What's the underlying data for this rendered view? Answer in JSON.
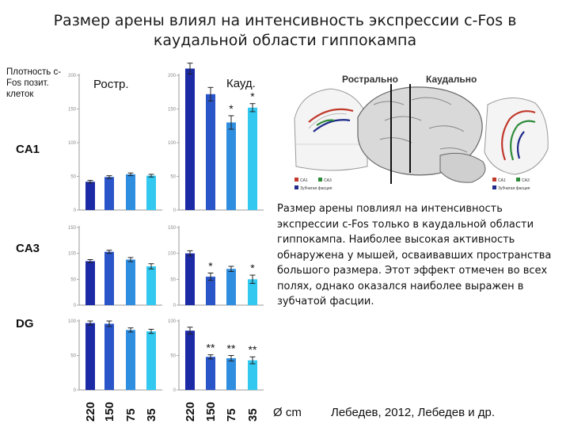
{
  "title": "Размер арены влиял на интенсивность экспрессии c-Fos в каудальной области гиппокампа",
  "y_axis_label": "Плотность c-Fos позит. клеток",
  "panel_labels": {
    "rostral": "Ростр.",
    "caudal": "Кауд."
  },
  "unit_label": "Ø cm",
  "citation": "Лебедев, 2012, Лебедев и др.",
  "description": "Размер арены повлиял на интенсивность экспрессии c-Fos только в каудальной области гиппокампа. Наиболее высокая активность обнаружена у мышей, осваивавших пространства большого размера. Этот эффект отмечен во всех полях, однако оказался наиболее выражен в зубчатой фасции.",
  "brain_figure": {
    "rostral_label": "Рострально",
    "caudal_label": "Каудально",
    "legend": [
      {
        "label": "CA1",
        "color": "#c0392b"
      },
      {
        "label": "CA3",
        "color": "#2e8b3a"
      },
      {
        "label": "Зубчатая фасция",
        "color": "#1f2a8a"
      }
    ]
  },
  "chart_data": {
    "type": "bar",
    "categories": [
      "220",
      "150",
      "75",
      "35"
    ],
    "bar_colors": [
      "#1c2aa6",
      "#2a55c9",
      "#2f8ee0",
      "#33c8f0"
    ],
    "panels": [
      {
        "region": "CA1",
        "ylim": [
          0,
          200
        ],
        "yticks": [
          0,
          50,
          100,
          150,
          200
        ],
        "rostral": {
          "values": [
            42,
            49,
            53,
            51
          ],
          "errors": [
            2,
            2,
            2,
            2
          ],
          "marks": [
            "",
            "",
            "",
            ""
          ]
        },
        "caudal": {
          "values": [
            210,
            172,
            130,
            152
          ],
          "errors": [
            8,
            10,
            10,
            6
          ],
          "marks": [
            "",
            "",
            "*",
            "*"
          ]
        }
      },
      {
        "region": "CA3",
        "ylim": [
          0,
          150
        ],
        "yticks": [
          0,
          50,
          100,
          150
        ],
        "rostral": {
          "values": [
            85,
            103,
            88,
            75
          ],
          "errors": [
            3,
            3,
            4,
            5
          ],
          "marks": [
            "",
            "",
            "",
            ""
          ]
        },
        "caudal": {
          "values": [
            100,
            55,
            70,
            50
          ],
          "errors": [
            5,
            7,
            5,
            8
          ],
          "marks": [
            "",
            "*",
            "",
            "*"
          ]
        }
      },
      {
        "region": "DG",
        "ylim": [
          0,
          100
        ],
        "yticks": [
          0,
          50,
          100
        ],
        "rostral": {
          "values": [
            97,
            96,
            87,
            85
          ],
          "errors": [
            3,
            4,
            3,
            3
          ],
          "marks": [
            "",
            "",
            "",
            ""
          ]
        },
        "caudal": {
          "values": [
            86,
            48,
            46,
            43
          ],
          "errors": [
            5,
            3,
            4,
            5
          ],
          "marks": [
            "",
            "**",
            "**",
            "**"
          ]
        }
      }
    ]
  }
}
